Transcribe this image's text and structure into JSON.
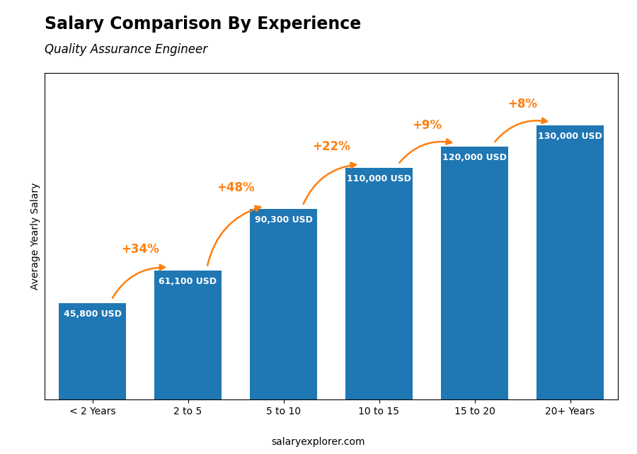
{
  "chart_data": {
    "type": "bar",
    "title": "Salary Comparison By Experience",
    "subtitle": "Quality Assurance Engineer",
    "y_label": "Average Yearly Salary",
    "categories": [
      "< 2 Years",
      "2 to 5",
      "5 to 10",
      "10 to 15",
      "15 to 20",
      "20+ Years"
    ],
    "values": [
      45800,
      61100,
      90300,
      110000,
      120000,
      130000
    ],
    "value_labels": [
      "45,800 USD",
      "61,100 USD",
      "90,300 USD",
      "110,000 USD",
      "120,000 USD",
      "130,000 USD"
    ],
    "data_labels": true,
    "annotations": [
      "+34%",
      "+48%",
      "+22%",
      "+9%",
      "+8%"
    ],
    "footer": "salaryexplorer.com",
    "ylim": [
      0,
      155000
    ],
    "tick_labels": "x",
    "grid": false
  }
}
